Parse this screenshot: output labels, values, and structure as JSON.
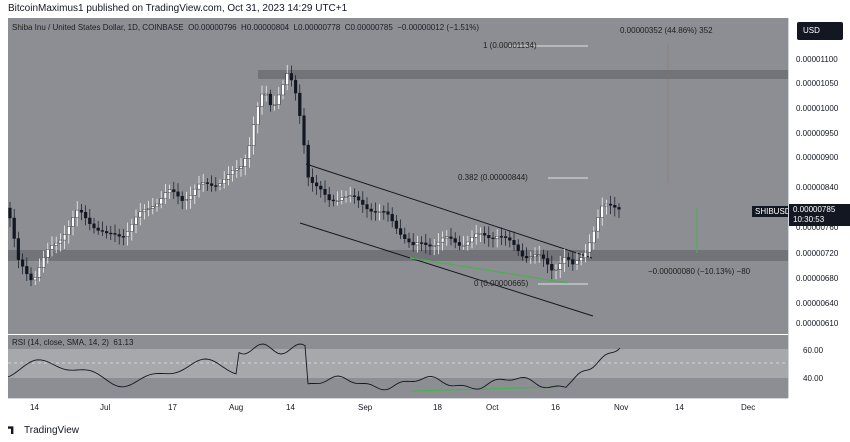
{
  "header": {
    "published": "BitcoinMaximus1 published on TradingView.com, Oct 31, 2023 14:29 UTC+1"
  },
  "legend": {
    "symbol": "Shiba Inu / United States Dollar, 1D, COINBASE",
    "o_label": "O",
    "o_value": "0.00000796",
    "h_label": "H",
    "h_value": "0.00000804",
    "l_label": "L",
    "l_value": "0.00000778",
    "c_label": "C",
    "c_value": "0.00000785",
    "change": "−0.00000012 (−1.51%)"
  },
  "currency_button": "USD",
  "price_ticks": [
    {
      "label": "0.00001100",
      "value": 1.1e-05
    },
    {
      "label": "0.00001050",
      "value": 1.05e-05
    },
    {
      "label": "0.00001000",
      "value": 1e-05
    },
    {
      "label": "0.00000950",
      "value": 9.5e-06
    },
    {
      "label": "0.00000900",
      "value": 9e-06
    },
    {
      "label": "0.00000840",
      "value": 8.4e-06
    },
    {
      "label": "0.00000760",
      "value": 7.6e-06
    },
    {
      "label": "0.00000720",
      "value": 7.2e-06
    },
    {
      "label": "0.00000680",
      "value": 6.8e-06
    },
    {
      "label": "0.00000640",
      "value": 6.4e-06
    },
    {
      "label": "0.00000610",
      "value": 6.1e-06
    }
  ],
  "current_price": {
    "symbol": "SHIBUSD",
    "price": "0.00000785",
    "countdown": "10:30:53"
  },
  "time_ticks": [
    "14",
    "Jul",
    "17",
    "Aug",
    "14",
    "Sep",
    "18",
    "Oct",
    "16",
    "Nov",
    "14",
    "Dec"
  ],
  "annotations": {
    "fib_1": "1 (0.00001134)",
    "fib_382": "0.382 (0.00000844)",
    "fib_0": "0 (0.00000665)",
    "measure_up": "0.00000352 (44.86%) 352",
    "measure_down": "−0.00000080 (−10.13%) −80"
  },
  "rsi": {
    "legend": "RSI (14, close, SMA, 14, 2)",
    "value": "61.13",
    "ticks": [
      "60.00",
      "40.00"
    ]
  },
  "footer": {
    "brand": "TradingView"
  },
  "colors": {
    "pane_bg": "#8c8e93",
    "zone": "#6e7075",
    "rsi_band": "#a6a8ac",
    "divergence": "#4caf50",
    "dark": "#131722"
  }
}
